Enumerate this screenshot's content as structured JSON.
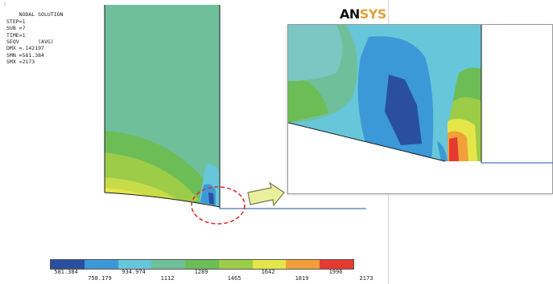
{
  "viewport": {
    "frame_number": "1",
    "info_lines": [
      "NODAL SOLUTION",
      "STEP=1",
      "SUB =7",
      "TIME=1",
      "SEQV      (AVG)",
      "DMX =.142197",
      "SMN =581.384",
      "SMX =2173"
    ],
    "logo_part1": "AN",
    "logo_part2": "SYS"
  },
  "legend": {
    "colors": [
      "#2a4f9f",
      "#3b99d8",
      "#67c6d9",
      "#6fbf9a",
      "#6cbd55",
      "#9ccc48",
      "#e5e64a",
      "#f1a03a",
      "#e53a31"
    ],
    "ticks_top": [
      "581.384",
      "934.974",
      "1289",
      "1642",
      "1996"
    ],
    "ticks_bottom": [
      "758.179",
      "1112",
      "1465",
      "1819",
      "2173"
    ]
  },
  "colors": {
    "plate_bg": "#6fbf9a",
    "outline": "#1a1a1a",
    "selection_circle": "#e03030",
    "arrow_fill": "#e9ef9c",
    "arrow_stroke": "#7a7a50",
    "baseline": "#4a73b5"
  }
}
